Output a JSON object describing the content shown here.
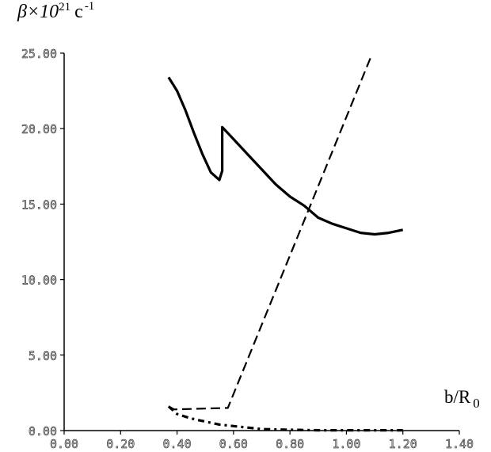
{
  "chart_data": {
    "type": "line",
    "ylabel": {
      "symbol": "β×10",
      "exponent": "21",
      "unit": "c",
      "unit_exponent": "-1"
    },
    "xlabel": {
      "base": "b/R",
      "subscript": "0"
    },
    "xlim": [
      0,
      1.4
    ],
    "ylim": [
      0,
      25
    ],
    "x_ticks": [
      "0.00",
      "0.20",
      "0.40",
      "0.60",
      "0.80",
      "1.00",
      "1.20",
      "1.40"
    ],
    "y_ticks": [
      "0.00",
      "5.00",
      "10.00",
      "15.00",
      "20.00",
      "25.00"
    ],
    "grid": false,
    "legend": "none",
    "series": [
      {
        "style": "solid",
        "color": "#000000",
        "x": [
          0.37,
          0.4,
          0.43,
          0.46,
          0.49,
          0.52,
          0.55,
          0.56,
          0.56,
          0.6,
          0.65,
          0.7,
          0.75,
          0.8,
          0.85,
          0.9,
          0.95,
          1.0,
          1.05,
          1.1,
          1.15,
          1.2
        ],
        "y": [
          23.4,
          22.5,
          21.2,
          19.7,
          18.3,
          17.1,
          16.6,
          17.2,
          20.1,
          19.3,
          18.3,
          17.3,
          16.3,
          15.5,
          14.9,
          14.1,
          13.7,
          13.4,
          13.1,
          13.0,
          13.1,
          13.3
        ]
      },
      {
        "style": "dashed",
        "color": "#000000",
        "x": [
          0.37,
          0.39,
          0.58,
          1.09
        ],
        "y": [
          1.6,
          1.4,
          1.5,
          24.9
        ]
      },
      {
        "style": "dash-dot",
        "color": "#000000",
        "x": [
          0.37,
          0.4,
          0.45,
          0.5,
          0.55,
          0.6,
          0.65,
          0.7,
          0.8,
          0.9,
          1.0,
          1.1,
          1.2
        ],
        "y": [
          1.6,
          1.1,
          0.8,
          0.6,
          0.4,
          0.3,
          0.2,
          0.1,
          0.05,
          0.02,
          0.02,
          0.02,
          0.02
        ]
      }
    ]
  }
}
